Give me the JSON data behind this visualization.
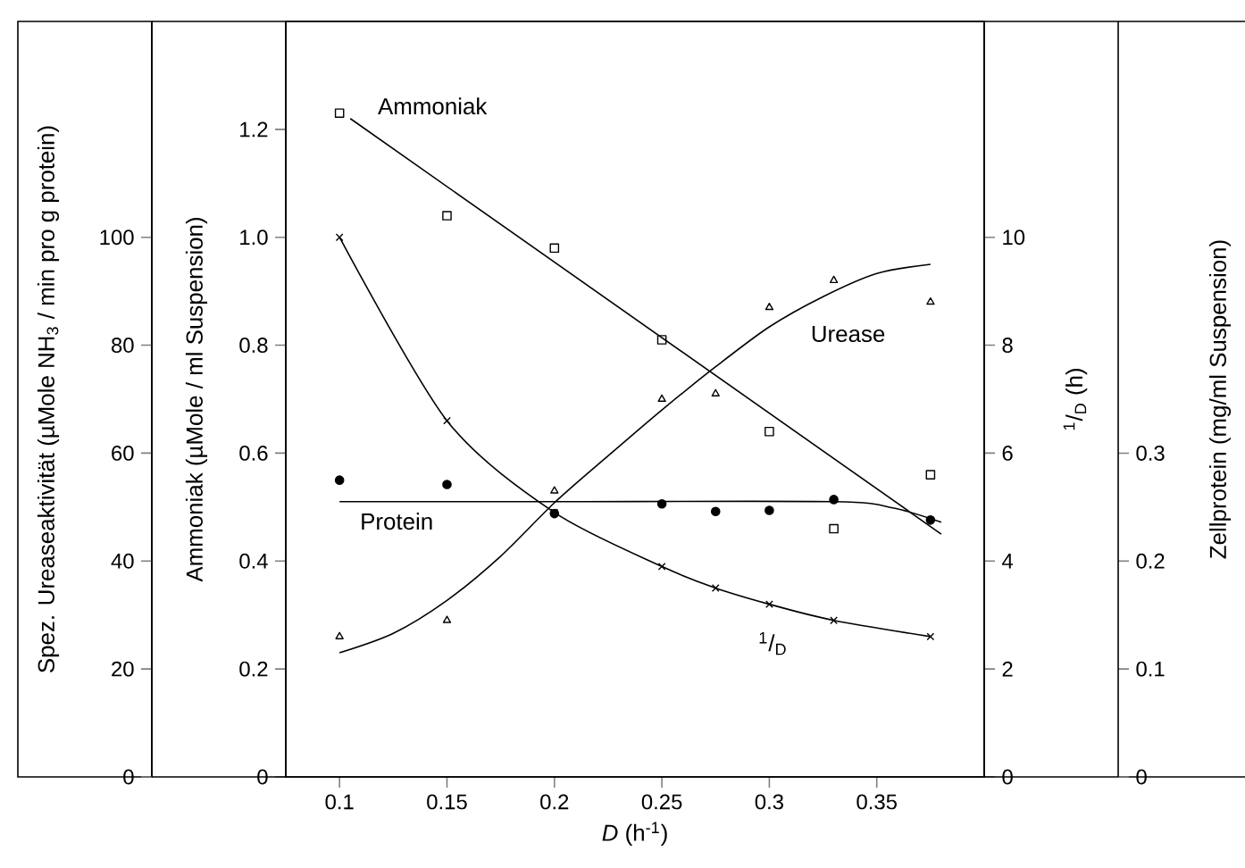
{
  "chart_data": [
    {
      "type": "scatter",
      "xlabel": "*D* (h$^{-1}$)",
      "ylabel": "Ammoniak (µMole / ml Suspension)",
      "y2label": "$^{1}$/$_{D}$ (h)",
      "y3label": "Spez. Ureaseaktivität (µMole NH$_{3}$ / min pro g protein)",
      "xlim": [
        0.075,
        0.4
      ],
      "xticks": [
        0.1,
        0.15,
        0.2,
        0.25,
        0.3,
        0.35
      ],
      "ylim": [
        0,
        1.4
      ],
      "yticks": [
        0,
        0.2,
        0.4,
        0.6,
        0.8,
        {
          "value": 1,
          "label": "1.0"
        },
        1.2
      ],
      "y2lim": [
        0,
        14
      ],
      "y2ticks": [
        0,
        2,
        4,
        6,
        8,
        10
      ],
      "y3lim": [
        0,
        140
      ],
      "y3ticks": [
        0,
        20,
        40,
        60,
        80,
        100
      ],
      "series": [
        {
          "name": "Ammoniak",
          "marker": "square",
          "color": "#000000",
          "x": [
            0.1,
            0.15,
            0.2,
            0.25,
            0.3,
            0.33,
            0.375
          ],
          "values": [
            1.23,
            1.04,
            0.98,
            0.81,
            0.64,
            0.46,
            0.56
          ]
        },
        {
          "name": "Urease",
          "marker": "triangle",
          "color": "#000000",
          "axis": "y3",
          "x": [
            0.1,
            0.15,
            0.2,
            0.25,
            0.275,
            0.3,
            0.33,
            0.375
          ],
          "values": [
            26,
            29,
            53,
            70,
            71,
            87,
            92,
            88
          ]
        },
        {
          "name": "$^{1}$/$_{D}$",
          "type": "line",
          "marker": "cross",
          "line_style": "solid",
          "color": "#000000",
          "axis": "y2",
          "x": [
            0.1,
            0.15,
            0.2,
            0.25,
            0.275,
            0.3,
            0.33,
            0.375
          ],
          "values": [
            10.0,
            6.6,
            4.9,
            3.9,
            3.5,
            3.2,
            2.9,
            2.6
          ]
        },
        {
          "type": "line",
          "marker": "none",
          "line_style": "solid",
          "color": "#000000",
          "x": [
            0.105,
            0.38
          ],
          "values": [
            1.22,
            0.45
          ]
        },
        {
          "type": "line",
          "marker": "none",
          "line_style": "solid",
          "color": "#000000",
          "axis": "y3",
          "x": [
            0.1,
            0.125,
            0.15,
            0.175,
            0.2,
            0.225,
            0.25,
            0.275,
            0.3,
            0.325,
            0.35,
            0.375
          ],
          "values": [
            23,
            26.6,
            32.7,
            40.9,
            50.8,
            59.5,
            68,
            76,
            83.4,
            89,
            93.3,
            95
          ]
        }
      ]
    },
    {
      "type": "scatter",
      "tick_labels": "y",
      "ylabel": "Zellprotein (mg/ml Suspension)",
      "xlim": [
        0.075,
        0.4
      ],
      "ylim": [
        0,
        0.7
      ],
      "yticks": [
        0,
        0.1,
        0.2,
        0.3
      ],
      "series": [
        {
          "name": "Protein",
          "marker": "circle",
          "color": "#000000",
          "x": [
            0.1,
            0.15,
            0.2,
            0.25,
            0.275,
            0.3,
            0.33,
            0.375
          ],
          "values": [
            0.275,
            0.271,
            0.244,
            0.253,
            0.246,
            0.247,
            0.257,
            0.238
          ]
        },
        {
          "type": "line",
          "marker": "none",
          "line_style": "solid",
          "color": "#000000",
          "x": [
            0.1,
            0.2,
            0.33,
            0.358,
            0.38
          ],
          "values": [
            0.255,
            0.255,
            0.255,
            0.249,
            0.236
          ]
        }
      ]
    }
  ]
}
